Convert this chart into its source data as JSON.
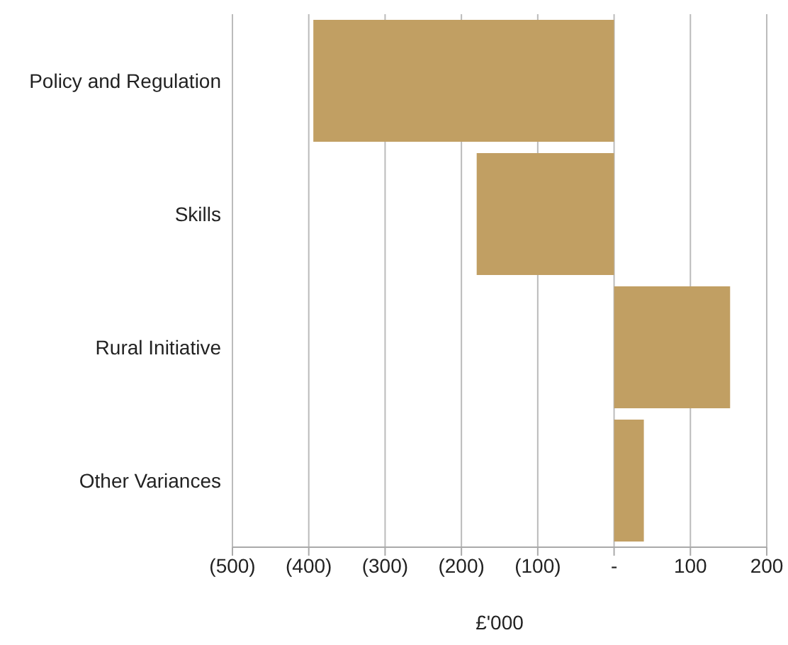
{
  "chart_data": {
    "type": "bar",
    "orientation": "horizontal",
    "xlabel": "£'000",
    "categories": [
      "Policy and Regulation",
      "Skills",
      "Rural Initiative",
      "Other Variances"
    ],
    "values": [
      -394,
      -180,
      152,
      39
    ],
    "color": "#c19f63",
    "xlim": [
      -500,
      200
    ],
    "xticks": [
      {
        "value": -500,
        "label": "(500)"
      },
      {
        "value": -400,
        "label": "(400)"
      },
      {
        "value": -300,
        "label": "(300)"
      },
      {
        "value": -200,
        "label": "(200)"
      },
      {
        "value": -100,
        "label": "(100)"
      },
      {
        "value": 0,
        "label": "-"
      },
      100,
      200
    ],
    "grid": "x",
    "legend": false
  }
}
